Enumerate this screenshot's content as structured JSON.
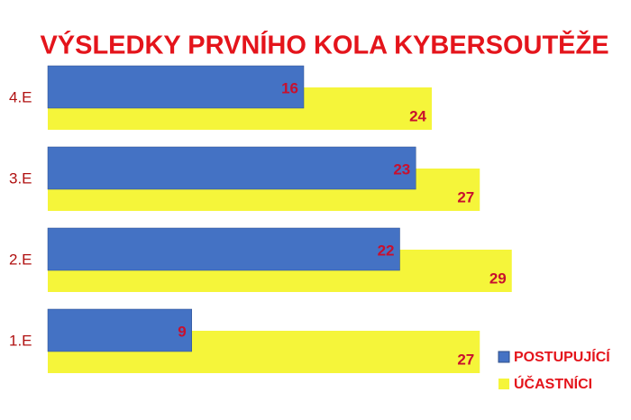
{
  "chart_data": {
    "type": "bar",
    "orientation": "horizontal",
    "title": "VÝSLEDKY PRVNÍHO KOLA KYBERSOUTĚŽE",
    "categories": [
      "4.E",
      "3.E",
      "2.E",
      "1.E"
    ],
    "series": [
      {
        "name": "POSTUPUJÍCÍ",
        "color": "#4472c4",
        "values": [
          16,
          23,
          22,
          9
        ]
      },
      {
        "name": "ÚČASTNÍCI",
        "color": "#f5f53a",
        "values": [
          24,
          27,
          29,
          27
        ]
      }
    ],
    "legend": "lower right"
  }
}
